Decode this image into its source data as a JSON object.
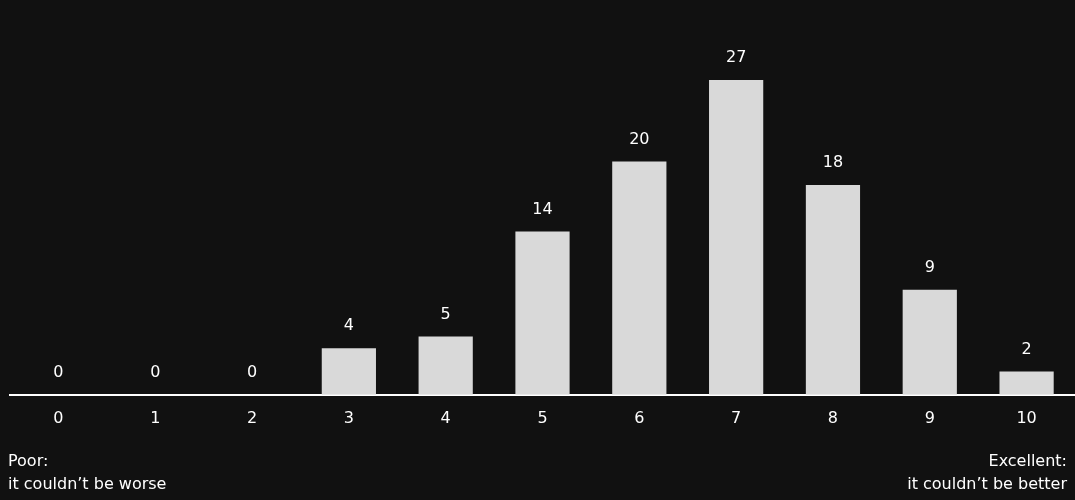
{
  "chart_data": {
    "type": "bar",
    "categories": [
      "0",
      "1",
      "2",
      "3",
      "4",
      "5",
      "6",
      "7",
      "8",
      "9",
      "10"
    ],
    "values": [
      0,
      0,
      0,
      4,
      5,
      14,
      20,
      27,
      18,
      9,
      2
    ],
    "color": "#d9d9d9",
    "data_labels": true,
    "legend": false,
    "annotations": [
      "Poor:\nit couldn’t be worse",
      "Excellent:\nit couldn’t be better"
    ]
  }
}
